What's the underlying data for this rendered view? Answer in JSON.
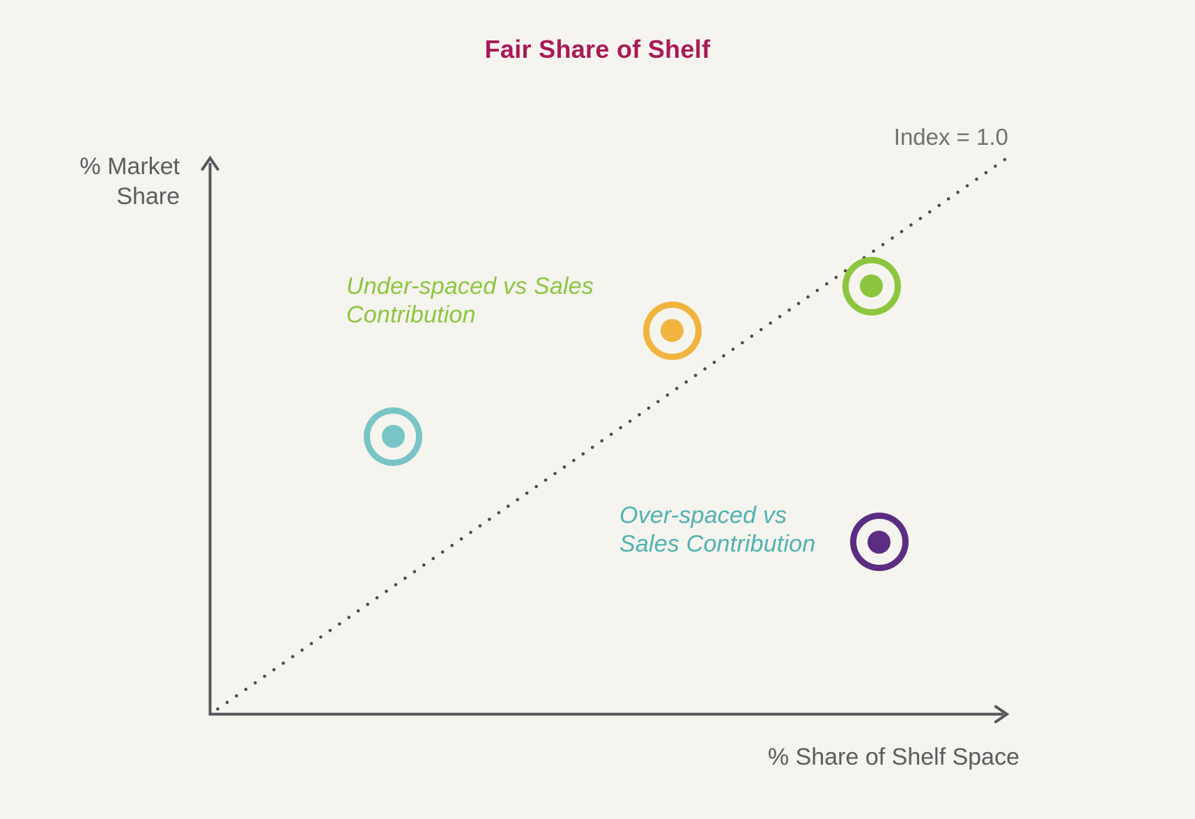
{
  "title": {
    "text": "Fair Share of Shelf",
    "color": "#a91a56"
  },
  "axes": {
    "y_label_lines": [
      "% Market",
      "Share"
    ],
    "x_label": "% Share of Shelf Space",
    "label_color": "#5b5c60",
    "line_color": "#55565b"
  },
  "reference_line_label": {
    "text": "Index = 1.0",
    "color": "#6f7074"
  },
  "annotations": {
    "under_spaced": {
      "lines": [
        "Under-spaced vs Sales",
        "Contribution"
      ],
      "color": "#8cc63f"
    },
    "over_spaced": {
      "lines": [
        "Over-spaced vs",
        "Sales Contribution"
      ],
      "color": "#4fb3b0"
    }
  },
  "colors": {
    "background": "#f6f4ee",
    "dotted_line": "#4b4c50"
  },
  "chart_data": {
    "type": "scatter",
    "title": "Fair Share of Shelf",
    "xlabel": "% Share of Shelf Space",
    "ylabel": "% Market Share",
    "xlim": [
      0,
      1
    ],
    "ylim": [
      0,
      1
    ],
    "grid": false,
    "legend_position": "none",
    "axis_ticks": "none (conceptual chart, relative 0-1 scale)",
    "reference_line": {
      "label": "Index = 1.0",
      "equation": "y = x",
      "style": "dotted",
      "from": [
        0.01,
        0.01
      ],
      "to": [
        1.0,
        1.0
      ]
    },
    "points": [
      {
        "shelf_space": 0.23,
        "market_share": 0.5,
        "color": "#79c5c6",
        "position_vs_line": "above"
      },
      {
        "shelf_space": 0.58,
        "market_share": 0.69,
        "color": "#f0b43f",
        "position_vs_line": "above"
      },
      {
        "shelf_space": 0.83,
        "market_share": 0.77,
        "color": "#8cc63f",
        "position_vs_line": "on line"
      },
      {
        "shelf_space": 0.84,
        "market_share": 0.31,
        "color": "#5a2d83",
        "position_vs_line": "below"
      }
    ]
  }
}
